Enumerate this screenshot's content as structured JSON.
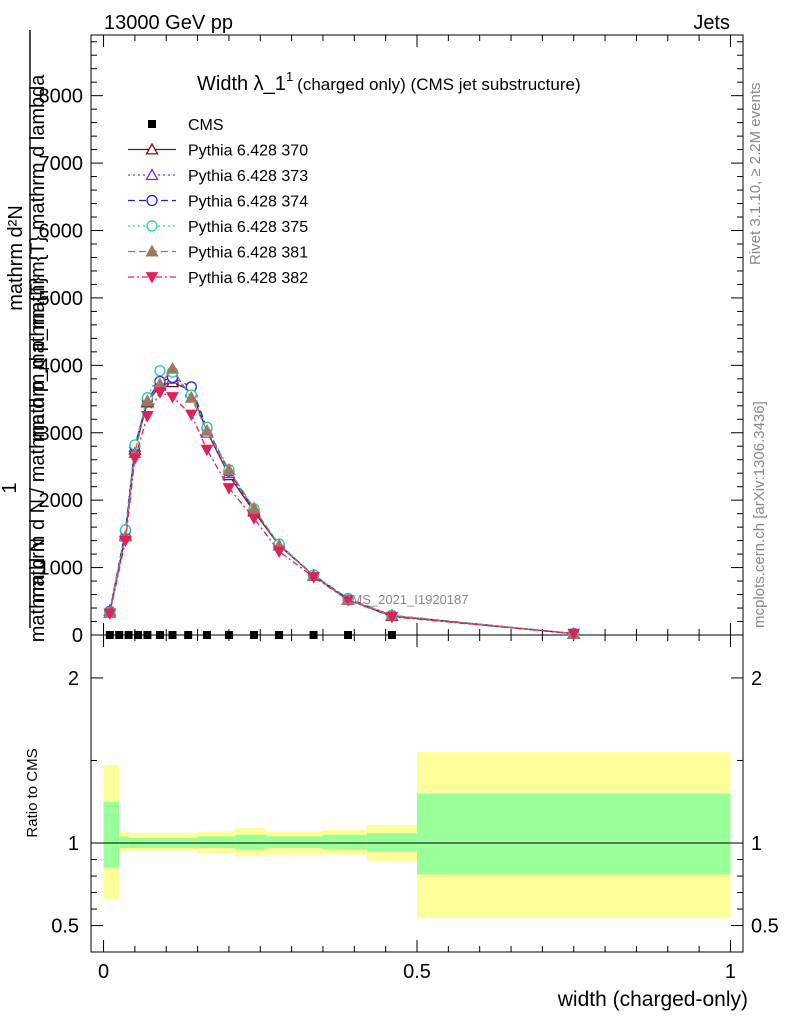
{
  "header": {
    "left": "13000 GeV pp",
    "right": "Jets"
  },
  "side_labels": {
    "rivet": "Rivet 3.1.10, ≥ 2.2M events",
    "mcplots": "mcplots.cern.ch [arXiv:1306.3436]"
  },
  "chart_data": [
    {
      "type": "line",
      "panel": "main",
      "title_main": "Width λ_1",
      "title_sup": "1",
      "title_rest": "(charged only) (CMS jet substructure)",
      "ylabel_top": "mathrm d²N",
      "ylabel_top2": "mathrm d p_mathrm{T} mathrm d lambda",
      "ylabel_one": "1",
      "ylabel_bottom": "mathrm d N / mathrm d p_mathrm{T}",
      "ylabel_bottom2": "mathrm d N",
      "watermark": "CMS_2021_I1920187",
      "ylim": [
        0,
        8900
      ],
      "xlim": [
        -0.02,
        1.02
      ],
      "y_ticks": [
        {
          "v": 0,
          "label": "0"
        },
        {
          "v": 1000,
          "label": "1000"
        },
        {
          "v": 2000,
          "label": "2000"
        },
        {
          "v": 3000,
          "label": "3000"
        },
        {
          "v": 4000,
          "label": "4000"
        },
        {
          "v": 5000,
          "label": "5000"
        },
        {
          "v": 6000,
          "label": "6000"
        },
        {
          "v": 7000,
          "label": "7000"
        },
        {
          "v": 8000,
          "label": "8000"
        }
      ],
      "x": [
        0.01,
        0.035,
        0.05,
        0.07,
        0.09,
        0.11,
        0.14,
        0.165,
        0.2,
        0.24,
        0.28,
        0.335,
        0.39,
        0.46,
        0.75
      ],
      "series": [
        {
          "name": "CMS",
          "color": "#000000",
          "marker": "square-filled",
          "dash": "",
          "values": [
            0,
            0,
            0,
            0,
            0,
            0,
            0,
            0,
            0,
            0,
            0,
            0,
            0,
            0,
            0
          ],
          "x": [
            0.01,
            0.025,
            0.04,
            0.055,
            0.07,
            0.09,
            0.11,
            0.135,
            0.165,
            0.2,
            0.24,
            0.28,
            0.335,
            0.39,
            0.46
          ]
        },
        {
          "name": "Pythia 6.428 370",
          "color": "#7a1010",
          "marker": "triangle-open",
          "dash": "",
          "values": [
            330,
            1480,
            2750,
            3450,
            3700,
            3750,
            3620,
            3020,
            2370,
            1830,
            1330,
            880,
            520,
            280,
            20
          ]
        },
        {
          "name": "Pythia 6.428 373",
          "color": "#8a2be2",
          "marker": "triangle-open",
          "dash": "2,3",
          "values": [
            360,
            1520,
            2790,
            3480,
            3760,
            3800,
            3600,
            3000,
            2400,
            1850,
            1330,
            880,
            530,
            290,
            20
          ]
        },
        {
          "name": "Pythia 6.428 374",
          "color": "#2222cc",
          "marker": "circle-open",
          "dash": "7,4",
          "values": [
            350,
            1550,
            2800,
            3490,
            3760,
            3820,
            3680,
            3070,
            2430,
            1860,
            1340,
            890,
            540,
            290,
            20
          ]
        },
        {
          "name": "Pythia 6.428 375",
          "color": "#20c8c0",
          "marker": "circle-open",
          "dash": "2,3",
          "values": [
            340,
            1560,
            2820,
            3520,
            3920,
            3900,
            3560,
            3080,
            2450,
            1870,
            1350,
            890,
            540,
            290,
            20
          ]
        },
        {
          "name": "Pythia 6.428 381",
          "color": "#a0785a",
          "marker": "triangle-filled",
          "dash": "7,4",
          "values": [
            330,
            1460,
            2700,
            3470,
            3720,
            3950,
            3520,
            3030,
            2450,
            1880,
            1330,
            880,
            520,
            290,
            20
          ]
        },
        {
          "name": "Pythia 6.428 382",
          "color": "#e0205a",
          "marker": "triangledown-filled",
          "dash": "6,3,2,3",
          "values": [
            320,
            1400,
            2620,
            3250,
            3600,
            3530,
            3270,
            2750,
            2180,
            1730,
            1240,
            860,
            520,
            270,
            20
          ]
        }
      ]
    },
    {
      "type": "area",
      "panel": "ratio",
      "ylabel": "Ratio to CMS",
      "xlabel": "width (charged-only)",
      "ylim": [
        0.34,
        2.26
      ],
      "xlim": [
        -0.02,
        1.02
      ],
      "y_ticks": [
        {
          "v": 0.5,
          "label": "0.5"
        },
        {
          "v": 1,
          "label": "1"
        },
        {
          "v": 2,
          "label": "2"
        }
      ],
      "x_ticks": [
        {
          "v": 0,
          "label": "0"
        },
        {
          "v": 0.5,
          "label": "0.5"
        },
        {
          "v": 1,
          "label": "1"
        }
      ],
      "bands": [
        {
          "x0": 0.0,
          "x1": 0.025,
          "y_lo": 0.66,
          "y_hi": 1.47,
          "g_lo": 0.85,
          "g_hi": 1.25
        },
        {
          "x0": 0.025,
          "x1": 0.04,
          "y_lo": 0.95,
          "y_hi": 1.07,
          "g_lo": 0.97,
          "g_hi": 1.04
        },
        {
          "x0": 0.04,
          "x1": 0.075,
          "y_lo": 0.95,
          "y_hi": 1.06,
          "g_lo": 0.97,
          "g_hi": 1.03
        },
        {
          "x0": 0.075,
          "x1": 0.15,
          "y_lo": 0.95,
          "y_hi": 1.06,
          "g_lo": 0.97,
          "g_hi": 1.03
        },
        {
          "x0": 0.15,
          "x1": 0.21,
          "y_lo": 0.94,
          "y_hi": 1.07,
          "g_lo": 0.97,
          "g_hi": 1.04
        },
        {
          "x0": 0.21,
          "x1": 0.26,
          "y_lo": 0.92,
          "y_hi": 1.09,
          "g_lo": 0.96,
          "g_hi": 1.05
        },
        {
          "x0": 0.26,
          "x1": 0.35,
          "y_lo": 0.93,
          "y_hi": 1.07,
          "g_lo": 0.97,
          "g_hi": 1.04
        },
        {
          "x0": 0.35,
          "x1": 0.42,
          "y_lo": 0.93,
          "y_hi": 1.08,
          "g_lo": 0.96,
          "g_hi": 1.05
        },
        {
          "x0": 0.42,
          "x1": 0.5,
          "y_lo": 0.89,
          "y_hi": 1.11,
          "g_lo": 0.95,
          "g_hi": 1.06
        },
        {
          "x0": 0.5,
          "x1": 1.0,
          "y_lo": 0.55,
          "y_hi": 1.55,
          "g_lo": 0.81,
          "g_hi": 1.3
        }
      ]
    }
  ]
}
